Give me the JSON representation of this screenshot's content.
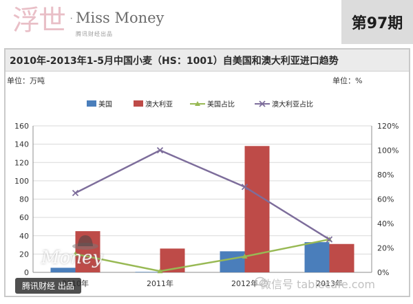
{
  "header": {
    "logo_glyph": "浮世",
    "logo_dot": "·",
    "logo_title": "Miss Money",
    "logo_sub": "腾讯财经出品",
    "issue": "第97期"
  },
  "colors": {
    "us_bar": "#4a7ebb",
    "au_bar": "#be4b48",
    "us_share": "#98b954",
    "au_share": "#7d6d9b"
  },
  "units": {
    "left": "单位：万吨",
    "right": "单位：%"
  },
  "chart_data": {
    "type": "bar",
    "title": "2010年-2013年1-5月中国小麦（HS：1001）自美国和澳大利亚进口趋势",
    "categories": [
      "2010年",
      "2011年",
      "2012年",
      "2013年"
    ],
    "ylim": [
      0,
      160
    ],
    "y2lim": [
      0,
      120
    ],
    "yticks": [
      "0",
      "20",
      "40",
      "60",
      "80",
      "100",
      "120",
      "140",
      "160"
    ],
    "y2ticks": [
      "0%",
      "20%",
      "40%",
      "60%",
      "80%",
      "100%",
      "120%"
    ],
    "legend_position": "top",
    "series": [
      {
        "name": "美国",
        "kind": "bar",
        "axis": "left",
        "values": [
          5,
          0.5,
          23,
          33
        ]
      },
      {
        "name": "澳大利亚",
        "kind": "bar",
        "axis": "left",
        "values": [
          45,
          26,
          138,
          31
        ]
      },
      {
        "name": "美国占比",
        "kind": "line",
        "axis": "right",
        "values": [
          15,
          1,
          13,
          27
        ]
      },
      {
        "name": "澳大利亚占比",
        "kind": "line",
        "axis": "right",
        "values": [
          65,
          100,
          70,
          27
        ]
      }
    ]
  },
  "watermark": {
    "badge": "腾讯财经 出品",
    "brand": "Money",
    "wechat": "微信号 tabiecafe.com"
  }
}
